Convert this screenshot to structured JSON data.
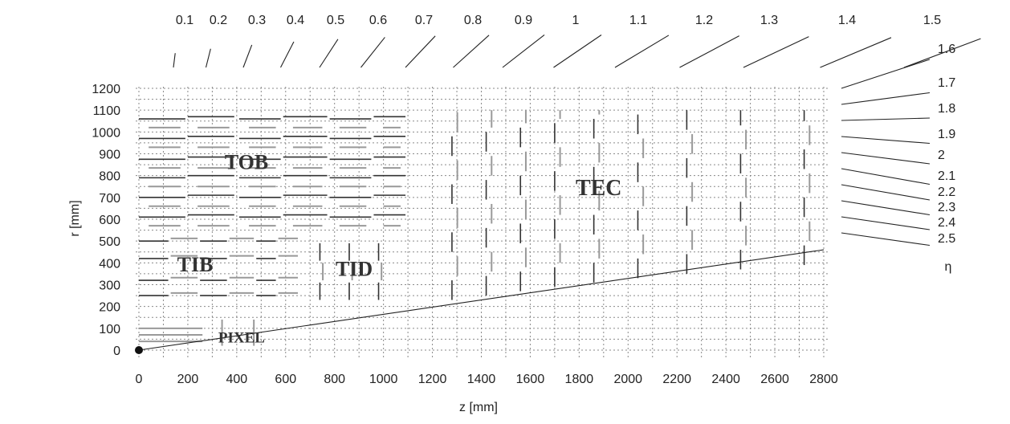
{
  "chart_data": {
    "type": "diagram",
    "xlabel": "z [mm]",
    "ylabel": "r [mm]",
    "xlim": [
      0,
      2800
    ],
    "ylim": [
      0,
      1200
    ],
    "x_ticks": [
      "0",
      "200",
      "400",
      "600",
      "800",
      "1000",
      "1200",
      "1400",
      "1600",
      "1800",
      "2000",
      "2200",
      "2400",
      "2600",
      "2800"
    ],
    "y_ticks": [
      "0",
      "100",
      "200",
      "300",
      "400",
      "500",
      "600",
      "700",
      "800",
      "900",
      "1000",
      "1100",
      "1200"
    ],
    "grid": true,
    "eta_symbol": "η",
    "eta_top": [
      "0.1",
      "0.2",
      "0.3",
      "0.4",
      "0.5",
      "0.6",
      "0.7",
      "0.8",
      "0.9",
      "1",
      "1.1",
      "1.2",
      "1.3",
      "1.4",
      "1.5"
    ],
    "eta_right": [
      "1.6",
      "1.7",
      "1.8",
      "1.9",
      "2",
      "2.1",
      "2.2",
      "2.3",
      "2.4",
      "2.5"
    ],
    "regions": [
      {
        "label": "TOB",
        "z": 440,
        "r": 830,
        "size": 26
      },
      {
        "label": "TEC",
        "z": 1880,
        "r": 710,
        "size": 28
      },
      {
        "label": "TIB",
        "z": 230,
        "r": 360,
        "size": 26
      },
      {
        "label": "TID",
        "z": 880,
        "r": 340,
        "size": 26
      },
      {
        "label": "PIXEL",
        "z": 420,
        "r": 35,
        "size": 19
      }
    ],
    "eta_reference_line": {
      "eta": 2.5,
      "z_end": 2800,
      "r_end": 460
    }
  }
}
